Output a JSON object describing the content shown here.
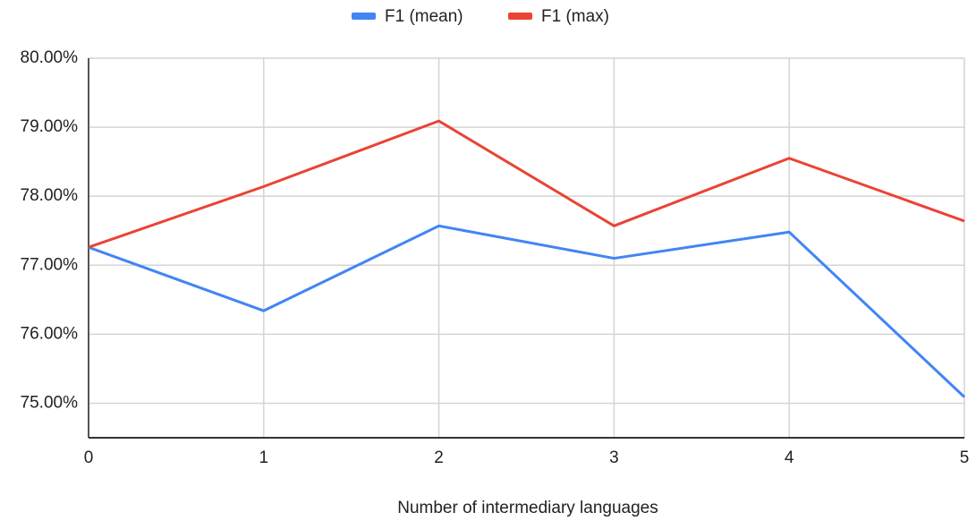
{
  "chart_data": {
    "type": "line",
    "x_label": "Number of intermediary languages",
    "x": [
      0,
      1,
      2,
      3,
      4,
      5
    ],
    "series": [
      {
        "name": "F1 (mean)",
        "color": "#4285f4",
        "values": [
          77.26,
          76.34,
          77.57,
          77.1,
          77.48,
          75.09
        ]
      },
      {
        "name": "F1 (max)",
        "color": "#ea4335",
        "values": [
          77.26,
          78.14,
          79.09,
          77.57,
          78.55,
          77.64
        ]
      }
    ],
    "xlim": [
      0,
      5
    ],
    "xticks": [
      0,
      1,
      2,
      3,
      4,
      5
    ],
    "ylim": [
      74.5,
      80
    ],
    "yticks": [
      {
        "value": 75,
        "label": "75.00%"
      },
      {
        "value": 76,
        "label": "76.00%"
      },
      {
        "value": 77,
        "label": "77.00%"
      },
      {
        "value": 78,
        "label": "78.00%"
      },
      {
        "value": 79,
        "label": "79.00%"
      },
      {
        "value": 80,
        "label": "80.00%"
      }
    ],
    "grid": true,
    "legend": "top"
  }
}
